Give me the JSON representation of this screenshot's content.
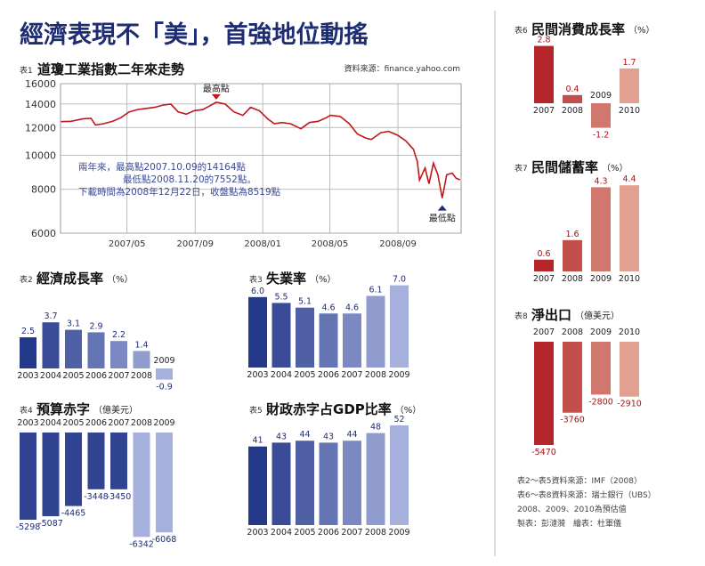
{
  "headline": "經濟表現不「美」，首強地位動搖",
  "notes": [
    "表2～表5資料來源：IMF（2008）",
    "表6～表8資料來源：瑞士銀行（UBS）",
    "2008、2009、2010為預估值",
    "製表：彭漣漪　繪表：杜軍儀"
  ],
  "colors": {
    "headline": "#1e2d72",
    "blue_dark": "#24388a",
    "blue_light": "#a6b0dc",
    "red_dark": "#b3262a",
    "red_light": "#e2a090",
    "line": "#c0161c",
    "annotation": "#3a4a9a"
  },
  "chart_data": [
    {
      "id": "t1",
      "tag": "表1",
      "title": "道瓊工業指數二年來走勢",
      "source": "資料來源：finance.yahoo.com",
      "type": "line",
      "yscale": "log",
      "ylim": [
        6000,
        16000
      ],
      "grid": true,
      "yticks": [
        "16000",
        "14000",
        "12000",
        "10000",
        "8000",
        "6000"
      ],
      "xticks": [
        "2007/05",
        "2007/09",
        "2008/01",
        "2008/05",
        "2008/09"
      ],
      "high_label": "最高點",
      "low_label": "最低點",
      "annotation": [
        "兩年來，最高點2007.10.09的14164點",
        "最低點2008.11.20的7552點。",
        "下載時間為2008年12月22日，收盤點為8519點"
      ],
      "x": [
        "2007-01-02",
        "2007-01-20",
        "2007-02-10",
        "2007-02-25",
        "2007-03-05",
        "2007-03-20",
        "2007-04-05",
        "2007-04-20",
        "2007-05-05",
        "2007-05-20",
        "2007-06-05",
        "2007-06-20",
        "2007-07-05",
        "2007-07-19",
        "2007-08-01",
        "2007-08-16",
        "2007-08-30",
        "2007-09-15",
        "2007-09-30",
        "2007-10-09",
        "2007-10-25",
        "2007-11-10",
        "2007-11-26",
        "2007-12-10",
        "2007-12-26",
        "2008-01-10",
        "2008-01-22",
        "2008-02-05",
        "2008-02-20",
        "2008-03-10",
        "2008-03-25",
        "2008-04-10",
        "2008-04-25",
        "2008-05-02",
        "2008-05-20",
        "2008-06-05",
        "2008-06-20",
        "2008-07-05",
        "2008-07-15",
        "2008-08-01",
        "2008-08-15",
        "2008-09-01",
        "2008-09-15",
        "2008-09-29",
        "2008-10-06",
        "2008-10-10",
        "2008-10-20",
        "2008-10-27",
        "2008-11-04",
        "2008-11-12",
        "2008-11-20",
        "2008-11-28",
        "2008-12-08",
        "2008-12-15",
        "2008-12-22"
      ],
      "values": [
        12470,
        12500,
        12700,
        12750,
        12200,
        12300,
        12500,
        12800,
        13300,
        13500,
        13600,
        13700,
        13900,
        14000,
        13300,
        13100,
        13400,
        13500,
        13900,
        14164,
        14000,
        13300,
        13000,
        13700,
        13400,
        12700,
        12300,
        12400,
        12300,
        11900,
        12400,
        12500,
        12800,
        13000,
        12900,
        12300,
        11500,
        11200,
        11100,
        11600,
        11700,
        11400,
        11000,
        10400,
        9600,
        8500,
        9200,
        8300,
        9500,
        8800,
        7552,
        8800,
        8900,
        8600,
        8519
      ]
    },
    {
      "id": "t2",
      "tag": "表2",
      "title": "經濟成長率",
      "unit": "（%）",
      "type": "bar",
      "categories": [
        "2003",
        "2004",
        "2005",
        "2006",
        "2007",
        "2008",
        "2009"
      ],
      "values": [
        2.5,
        3.7,
        3.1,
        2.9,
        2.2,
        1.4,
        -0.9
      ],
      "labels": [
        "2.5",
        "3.7",
        "3.1",
        "2.9",
        "2.2",
        "1.4",
        "-0.9"
      ]
    },
    {
      "id": "t3",
      "tag": "表3",
      "title": "失業率",
      "unit": "（%）",
      "type": "bar",
      "categories": [
        "2003",
        "2004",
        "2005",
        "2006",
        "2007",
        "2008",
        "2009"
      ],
      "values": [
        6.0,
        5.5,
        5.1,
        4.6,
        4.6,
        6.1,
        7.0
      ],
      "labels": [
        "6.0",
        "5.5",
        "5.1",
        "4.6",
        "4.6",
        "6.1",
        "7.0"
      ]
    },
    {
      "id": "t4",
      "tag": "表4",
      "title": "預算赤字",
      "unit": "（億美元）",
      "type": "bar",
      "categories": [
        "2003",
        "2004",
        "2005",
        "2006",
        "2007",
        "2008",
        "2009"
      ],
      "values": [
        -5298,
        -5087,
        -4465,
        -3448,
        -3450,
        -6342,
        -6068
      ],
      "labels": [
        "-5298",
        "-5087",
        "-4465",
        "-3448",
        "-3450",
        "-6342",
        "-6068"
      ]
    },
    {
      "id": "t5",
      "tag": "表5",
      "title": "財政赤字占GDP比率",
      "unit": "（%）",
      "type": "bar",
      "categories": [
        "2003",
        "2004",
        "2005",
        "2006",
        "2007",
        "2008",
        "2009"
      ],
      "values": [
        41,
        43,
        44,
        43,
        44,
        48,
        52
      ],
      "labels": [
        "41",
        "43",
        "44",
        "43",
        "44",
        "48",
        "52"
      ]
    },
    {
      "id": "t6",
      "tag": "表6",
      "title": "民間消費成長率",
      "unit": "（%）",
      "type": "bar",
      "categories": [
        "2007",
        "2008",
        "2009",
        "2010"
      ],
      "values": [
        2.8,
        0.4,
        -1.2,
        1.7
      ],
      "labels": [
        "2.8",
        "0.4",
        "-1.2",
        "1.7"
      ]
    },
    {
      "id": "t7",
      "tag": "表7",
      "title": "民間儲蓄率",
      "unit": "（%）",
      "type": "bar",
      "categories": [
        "2007",
        "2008",
        "2009",
        "2010"
      ],
      "values": [
        0.6,
        1.6,
        4.3,
        4.4
      ],
      "labels": [
        "0.6",
        "1.6",
        "4.3",
        "4.4"
      ]
    },
    {
      "id": "t8",
      "tag": "表8",
      "title": "淨出口",
      "unit": "（億美元）",
      "type": "bar",
      "categories": [
        "2007",
        "2008",
        "2009",
        "2010"
      ],
      "values": [
        -5470,
        -3760,
        -2800,
        -2910
      ],
      "labels": [
        "-5470",
        "-3760",
        "-2800",
        "-2910"
      ]
    }
  ]
}
